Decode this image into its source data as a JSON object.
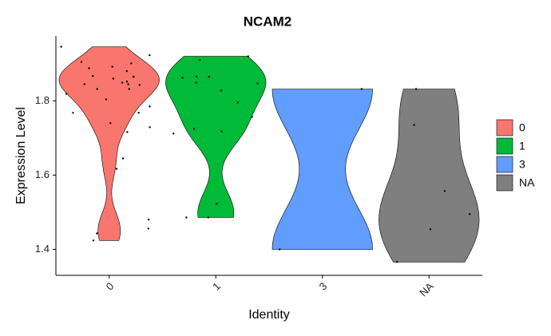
{
  "chart_data": {
    "type": "violin",
    "title": "NCAM2",
    "x_label": "Identity",
    "y_label": "Expression Level",
    "categories": [
      "0",
      "1",
      "3",
      "NA"
    ],
    "series": [
      {
        "name": "0",
        "color": "#F8766D",
        "values": [
          1.946,
          1.923,
          1.888,
          1.905,
          1.901,
          1.892,
          1.867,
          1.865,
          1.865,
          1.86,
          1.852,
          1.849,
          1.843,
          1.845,
          1.832,
          1.832,
          1.845,
          1.819,
          1.88,
          1.804,
          1.785,
          1.768,
          1.768,
          1.74,
          1.729,
          1.716,
          1.645,
          1.617,
          1.48,
          1.456,
          1.443,
          1.424
        ]
      },
      {
        "name": "1",
        "color": "#00BA38",
        "values": [
          1.92,
          1.91,
          1.862,
          1.865,
          1.865,
          1.849,
          1.847,
          1.828,
          1.796,
          1.757,
          1.712,
          1.725,
          1.718,
          1.523,
          1.486,
          1.486
        ]
      },
      {
        "name": "3",
        "color": "#619CFF",
        "values": [
          1.832,
          1.4
        ]
      },
      {
        "name": "NA",
        "color": "#7F7F7F",
        "values": [
          1.832,
          1.735,
          1.557,
          1.495,
          1.454,
          1.366
        ]
      }
    ],
    "ylim": [
      1.33,
      1.975
    ],
    "yticks": [
      1.4,
      1.6,
      1.8
    ],
    "grid": false,
    "legend": "right"
  }
}
